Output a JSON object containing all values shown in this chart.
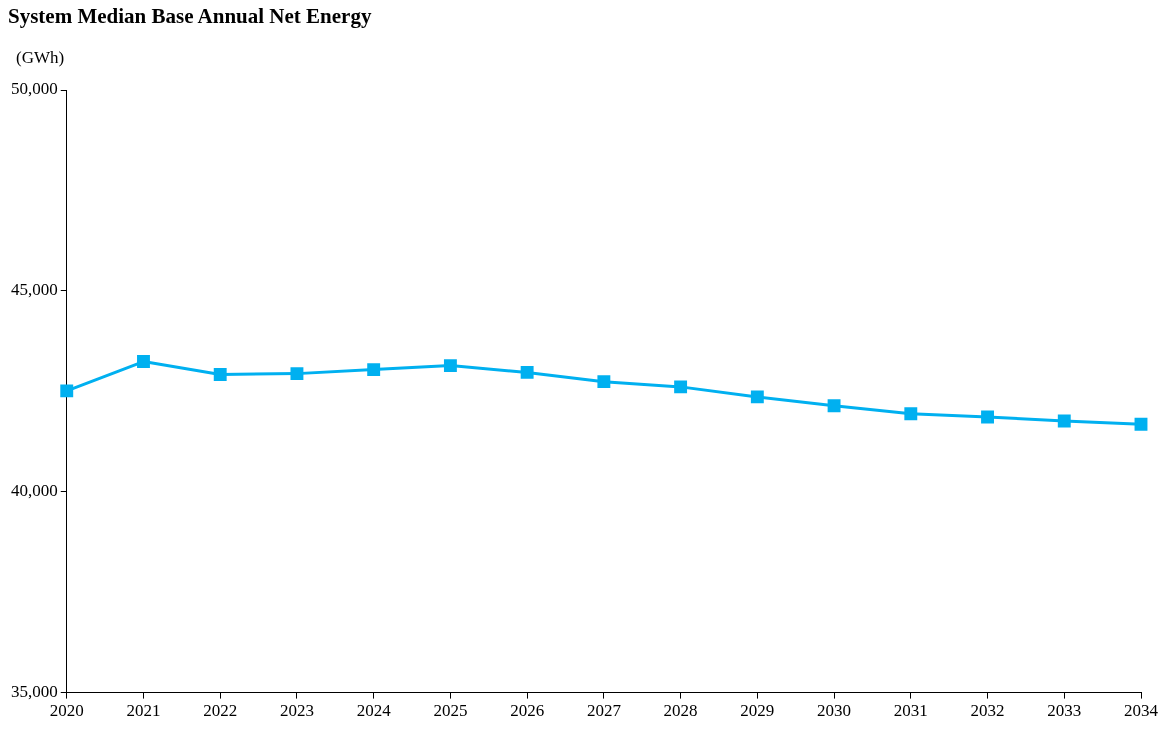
{
  "chart_data": {
    "type": "line",
    "title": "System Median Base Annual Net Energy",
    "ylabel": "(GWh)",
    "categories": [
      "2020",
      "2021",
      "2022",
      "2023",
      "2024",
      "2025",
      "2026",
      "2027",
      "2028",
      "2029",
      "2030",
      "2031",
      "2032",
      "2033",
      "2034"
    ],
    "series": [
      {
        "color": "#00b0f0",
        "values": [
          42510,
          43240,
          42920,
          42940,
          43040,
          43140,
          42970,
          42740,
          42610,
          42360,
          42140,
          41940,
          41860,
          41760,
          41680
        ]
      }
    ],
    "ylim": [
      35000,
      50000
    ],
    "yticks": [
      {
        "value": 35000,
        "label": "35,000"
      },
      {
        "value": 40000,
        "label": "40,000"
      },
      {
        "value": 45000,
        "label": "45,000"
      },
      {
        "value": 50000,
        "label": "50,000"
      }
    ],
    "grid": false,
    "legend": false,
    "marker": "square",
    "line_style": "solid"
  }
}
